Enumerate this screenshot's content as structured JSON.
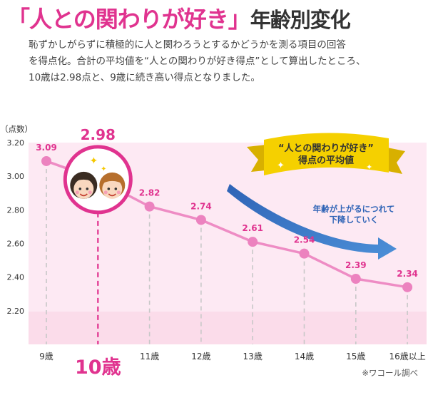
{
  "title": {
    "open_bracket": "「",
    "highlight": "人との関わりが好き",
    "close_bracket": "」",
    "rest": "年齢別変化"
  },
  "description": [
    "恥ずかしがらずに積極的に人と関わろうとするかどうかを測る項目の回答",
    "を得点化。合計の平均値を“人との関わりが好き得点”として算出したところ、",
    "10歳は2.98点と、9歳に続き高い得点となりました。"
  ],
  "colors": {
    "accent": "#e0338f",
    "line": "#ee8cc4",
    "point": "#ec82bf",
    "plot_bg": "#fde9f3",
    "banner": "#f5d000",
    "arrow": "#3a78c8"
  },
  "banner": {
    "line1": "“人との関わりが好き”",
    "line2": "得点の平均値"
  },
  "arrow_label": {
    "line1": "年齢が上がるにつれて",
    "line2": "下降していく"
  },
  "highlight_point": {
    "value_label": "2.98",
    "category_label": "10歳",
    "icon": "two-children-faces-icon"
  },
  "source": "※ワコール調べ",
  "chart_data": {
    "type": "line",
    "categories": [
      "9歳",
      "10歳",
      "11歳",
      "12歳",
      "13歳",
      "14歳",
      "15歳",
      "16歳以上"
    ],
    "values": [
      3.09,
      2.98,
      2.82,
      2.74,
      2.61,
      2.54,
      2.39,
      2.34
    ],
    "value_labels": [
      "3.09",
      "2.98",
      "2.82",
      "2.74",
      "2.61",
      "2.54",
      "2.39",
      "2.34"
    ],
    "ylabel": "（点数）",
    "yticks": [
      "3.20",
      "3.00",
      "2.80",
      "2.60",
      "2.40",
      "2.20"
    ],
    "ytick_values": [
      3.2,
      3.0,
      2.8,
      2.6,
      2.4,
      2.2
    ],
    "ylim": [
      2.0,
      3.2
    ],
    "grid": false,
    "highlight_index": 1
  }
}
